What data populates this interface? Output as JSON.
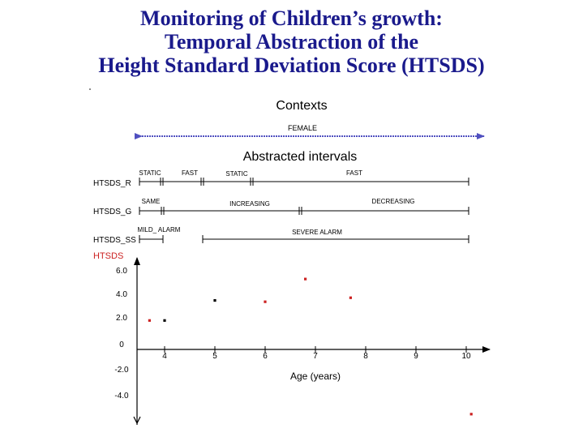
{
  "title": {
    "line1": "Monitoring of Children’s growth:",
    "line2": "Temporal Abstraction of the",
    "line3": "Height Standard Deviation Score (HTSDS)"
  },
  "contexts": {
    "heading": "Contexts",
    "label": "FEMALE"
  },
  "abstracted": {
    "heading": "Abstracted intervals",
    "rows": [
      {
        "name": "HTSDS_R",
        "labels": [
          "STATIC",
          "FAST",
          "STATIC",
          "FAST"
        ]
      },
      {
        "name": "HTSDS_G",
        "labels": [
          "SAME",
          "INCREASING",
          "DECREASING"
        ]
      },
      {
        "name": "HTSDS_SS",
        "labels": [
          "MILD_ ALARM",
          "SEVERE ALARM"
        ]
      }
    ]
  },
  "colors": {
    "title": "#1a1a8c",
    "arrow": "#5050c0",
    "series_label": "#cc2222",
    "point_red": "#cc2222",
    "point_black": "#000000"
  },
  "chart_data": {
    "type": "scatter",
    "ylabel": "HTSDS",
    "xlabel": "Age (years)",
    "x_ticks": [
      "4",
      "5",
      "6",
      "7",
      "8",
      "9",
      "10"
    ],
    "y_ticks": [
      "6.0",
      "4.0",
      "2.0",
      "0",
      "-2.0",
      "-4.0"
    ],
    "points": [
      {
        "x": 3.7,
        "y": 1.8,
        "color": "red"
      },
      {
        "x": 4.0,
        "y": 1.8,
        "color": "black"
      },
      {
        "x": 5.0,
        "y": 3.3,
        "color": "black"
      },
      {
        "x": 6.0,
        "y": 3.2,
        "color": "red"
      },
      {
        "x": 6.8,
        "y": 4.9,
        "color": "red"
      },
      {
        "x": 7.7,
        "y": 3.5,
        "color": "red"
      },
      {
        "x": 10.1,
        "y": -5.2,
        "color": "red"
      }
    ]
  }
}
